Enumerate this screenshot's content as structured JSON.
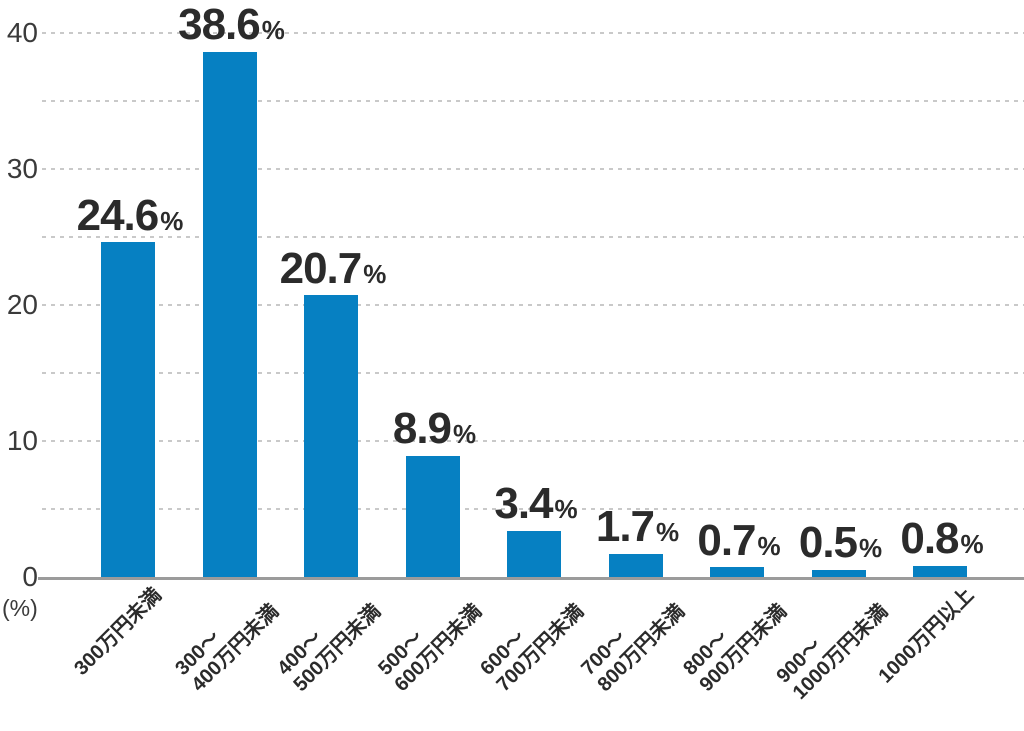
{
  "chart_data": {
    "type": "bar",
    "title": "",
    "xlabel": "",
    "ylabel": "(%)",
    "categories": [
      "300万円未満",
      "300〜\n400万円未満",
      "400〜\n500万円未満",
      "500〜\n600万円未満",
      "600〜\n700万円未満",
      "700〜\n800万円未満",
      "800〜\n900万円未満",
      "900〜\n1000万円未満",
      "1000万円以上"
    ],
    "values": [
      24.6,
      38.6,
      20.7,
      8.9,
      3.4,
      1.7,
      0.7,
      0.5,
      0.8
    ],
    "value_labels": [
      "24.6",
      "38.6",
      "20.7",
      "8.9",
      "3.4",
      "1.7",
      "0.7",
      "0.5",
      "0.8"
    ],
    "value_suffix": "%",
    "ylim": [
      0,
      40
    ],
    "yticks": [
      0,
      10,
      20,
      30,
      40
    ],
    "grid_interval": 5,
    "grid": true,
    "legend": false,
    "colors": {
      "bar": "#0680c2",
      "grid": "#c9c9c9",
      "axis": "#9b9b9b",
      "value_label": "#2b2b2b",
      "tick_label": "#3a3a3a"
    }
  }
}
